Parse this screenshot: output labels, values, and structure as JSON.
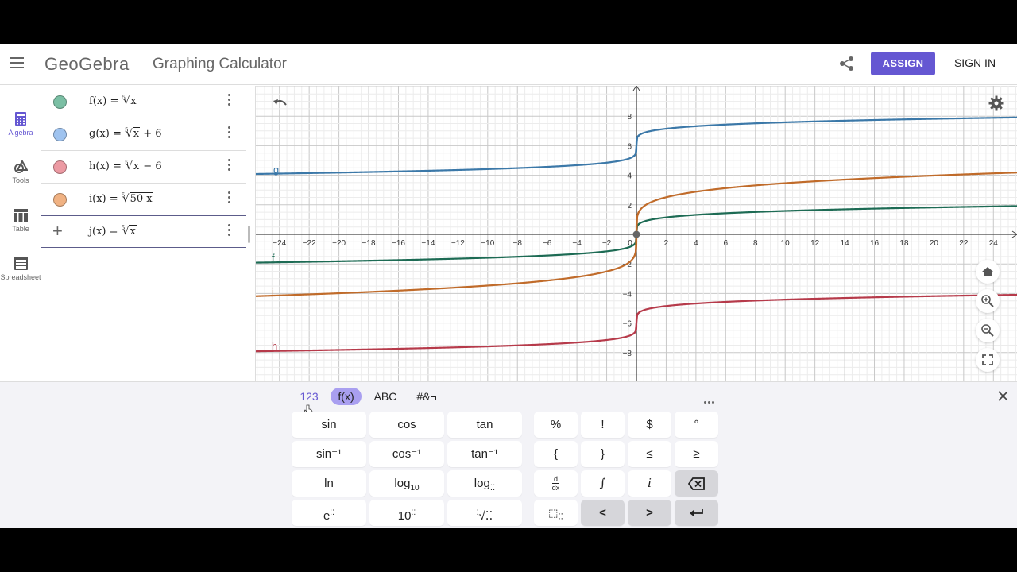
{
  "header": {
    "logo": "GeoGebra",
    "title": "Graphing Calculator",
    "assign_label": "ASSIGN",
    "signin_label": "SIGN IN",
    "brand_color": "#6557d2"
  },
  "sidebar": {
    "items": [
      {
        "label": "Algebra",
        "icon": "calculator-icon",
        "active": true
      },
      {
        "label": "Tools",
        "icon": "shapes-icon"
      },
      {
        "label": "Table",
        "icon": "table-icon"
      },
      {
        "label": "Spreadsheet",
        "icon": "spreadsheet-icon"
      }
    ]
  },
  "algebra": {
    "rows": [
      {
        "name": "f(x)",
        "eq": "=",
        "index": "5",
        "radicand": "x",
        "suffix": "",
        "color": "#7bbfa4"
      },
      {
        "name": "g(x)",
        "eq": "=",
        "index": "5",
        "radicand": "x",
        "suffix": " + 6",
        "color": "#9fc3ef"
      },
      {
        "name": "h(x)",
        "eq": "=",
        "index": "5",
        "radicand": "x",
        "suffix": " − 6",
        "color": "#ec9aa3"
      },
      {
        "name": "i(x)",
        "eq": "=",
        "index": "5",
        "radicand": "50 x",
        "suffix": "",
        "color": "#f0b283"
      },
      {
        "name": "j(x)",
        "eq": "=",
        "index": "5",
        "radicand": "x",
        "suffix": "",
        "add_icon": "+"
      }
    ]
  },
  "graph": {
    "x_ticks": [
      "−24",
      "−22",
      "−20",
      "−18",
      "−16",
      "−14",
      "−12",
      "−10",
      "−8",
      "−6",
      "−4",
      "−2",
      "0",
      "2",
      "4",
      "6",
      "8",
      "10",
      "12",
      "14",
      "16",
      "18",
      "20",
      "22",
      "24"
    ],
    "y_ticks": [
      "8",
      "6",
      "4",
      "2",
      "−2",
      "−4",
      "−6",
      "−8"
    ],
    "curve_labels": {
      "g": "g",
      "f": "f",
      "i": "i",
      "h": "h"
    },
    "curve_colors": {
      "f": "#1d6b54",
      "g": "#3b78a8",
      "h": "#b63a4a",
      "i": "#c06b2a"
    }
  },
  "keyboard": {
    "tabs": [
      "123",
      "f(x)",
      "ABC",
      "#&¬"
    ],
    "selected_tab": "f(x)",
    "func_keys": [
      [
        "sin",
        "cos",
        "tan"
      ],
      [
        "sin⁻¹",
        "cos⁻¹",
        "tan⁻¹"
      ],
      [
        "ln",
        "log",
        "log"
      ],
      [
        "e",
        "10",
        "√"
      ]
    ],
    "log10_sub": "10",
    "sym_keys": [
      [
        "%",
        "!",
        "$",
        "°"
      ],
      [
        "{",
        "}",
        "≤",
        "≥"
      ],
      [
        "d/dx",
        "∫",
        "i",
        "backspace"
      ],
      [
        "subscript",
        "<",
        ">",
        "enter"
      ]
    ]
  }
}
